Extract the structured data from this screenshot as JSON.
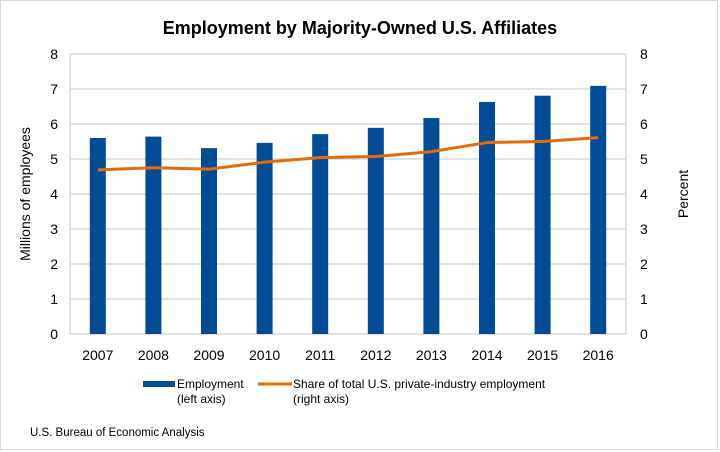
{
  "chart_data": {
    "type": "bar+line",
    "title": "Employment by Majority-Owned U.S. Affiliates",
    "ylabel": "Millions of employees",
    "y2label": "Percent",
    "ylim": [
      0,
      8
    ],
    "y2lim": [
      0,
      8
    ],
    "yticks": [
      "0",
      "1",
      "2",
      "3",
      "4",
      "5",
      "6",
      "7",
      "8"
    ],
    "categories": [
      "2007",
      "2008",
      "2009",
      "2010",
      "2011",
      "2012",
      "2013",
      "2014",
      "2015",
      "2016"
    ],
    "grid": true,
    "legend_placement": "bottom",
    "series": [
      {
        "name": "Employment",
        "name_line2": "(left axis)",
        "type": "bar",
        "axis": "left",
        "color": "#004C97",
        "values": [
          5.6,
          5.64,
          5.31,
          5.46,
          5.71,
          5.89,
          6.17,
          6.63,
          6.81,
          7.09
        ]
      },
      {
        "name": "Share of total U.S. private-industry employment",
        "name_line2": "(right axis)",
        "type": "line",
        "axis": "right",
        "color": "#E36C0A",
        "values": [
          4.69,
          4.75,
          4.71,
          4.91,
          5.04,
          5.07,
          5.21,
          5.47,
          5.5,
          5.61
        ]
      }
    ],
    "source": "U.S. Bureau of Economic Analysis"
  }
}
